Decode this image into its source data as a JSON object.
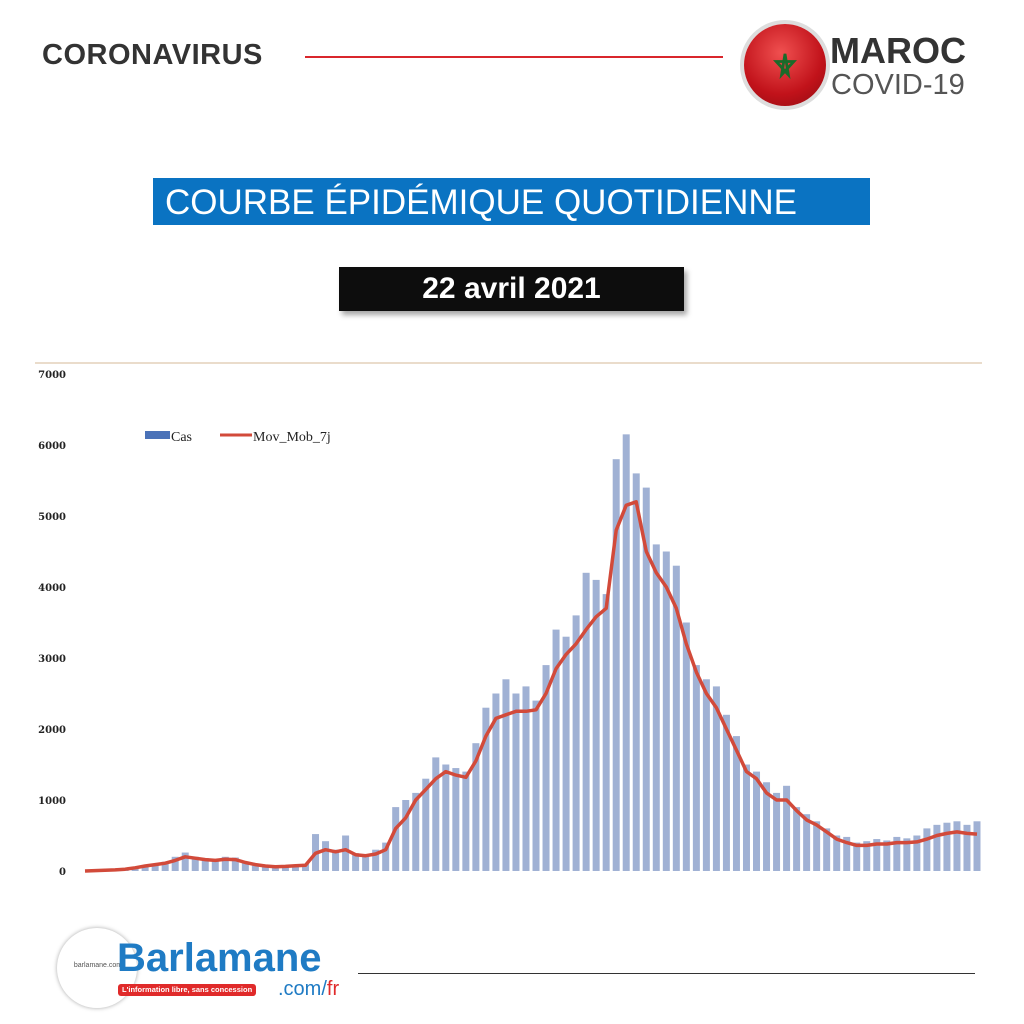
{
  "header": {
    "title": "CORONAVIRUS",
    "badge_title": "MAROC",
    "badge_subtitle": "COVID-19",
    "flag_icon": "morocco-flag-star",
    "accent": "#d9262c"
  },
  "banner": {
    "title": "COURBE ÉPIDÉMIQUE QUOTIDIENNE",
    "date": "22 avril 2021",
    "title_bg": "#0a73c2"
  },
  "chart_data": {
    "type": "bar",
    "title": "",
    "xlabel": "",
    "ylabel": "",
    "ylim": [
      0,
      7000
    ],
    "yticks": [
      "0",
      "1000",
      "2000",
      "3000",
      "4000",
      "5000",
      "6000",
      "7000"
    ],
    "legend": "top-left",
    "grid": false,
    "series": [
      {
        "name": "Cas",
        "type": "bar",
        "color": "#8fa3cc",
        "values": [
          0,
          10,
          12,
          20,
          30,
          60,
          80,
          100,
          130,
          200,
          260,
          200,
          180,
          170,
          200,
          190,
          130,
          100,
          80,
          70,
          80,
          90,
          100,
          520,
          420,
          300,
          500,
          250,
          230,
          300,
          400,
          900,
          1000,
          1100,
          1300,
          1600,
          1500,
          1450,
          1400,
          1800,
          2300,
          2500,
          2700,
          2500,
          2600,
          2400,
          2900,
          3400,
          3300,
          3600,
          4200,
          4100,
          3900,
          5800,
          6150,
          5600,
          5400,
          4600,
          4500,
          4300,
          3500,
          2900,
          2700,
          2600,
          2200,
          1900,
          1500,
          1400,
          1250,
          1100,
          1200,
          900,
          800,
          700,
          600,
          500,
          480,
          400,
          420,
          450,
          430,
          480,
          460,
          500,
          600,
          650,
          680,
          700,
          650,
          700
        ]
      },
      {
        "name": "Mov_Mob_7j",
        "type": "line",
        "color": "#d24a3a",
        "values": [
          0,
          5,
          10,
          15,
          25,
          45,
          70,
          90,
          110,
          150,
          200,
          180,
          160,
          150,
          165,
          160,
          120,
          90,
          70,
          60,
          65,
          75,
          80,
          250,
          300,
          270,
          300,
          230,
          215,
          240,
          300,
          600,
          750,
          1000,
          1150,
          1300,
          1400,
          1350,
          1320,
          1550,
          1900,
          2150,
          2200,
          2250,
          2250,
          2270,
          2500,
          2850,
          3050,
          3200,
          3400,
          3580,
          3700,
          4800,
          5150,
          5200,
          4500,
          4200,
          4000,
          3700,
          3200,
          2800,
          2500,
          2300,
          2000,
          1700,
          1400,
          1300,
          1100,
          1000,
          1000,
          850,
          720,
          650,
          550,
          450,
          400,
          360,
          360,
          380,
          380,
          400,
          400,
          410,
          450,
          500,
          530,
          550,
          530,
          520
        ]
      }
    ]
  },
  "footer": {
    "brand": "Barlamane",
    "tagline": "L'information libre, sans concession",
    "domain": ".com/",
    "domain_suffix": "fr",
    "logo_small": "barlamane.com"
  }
}
